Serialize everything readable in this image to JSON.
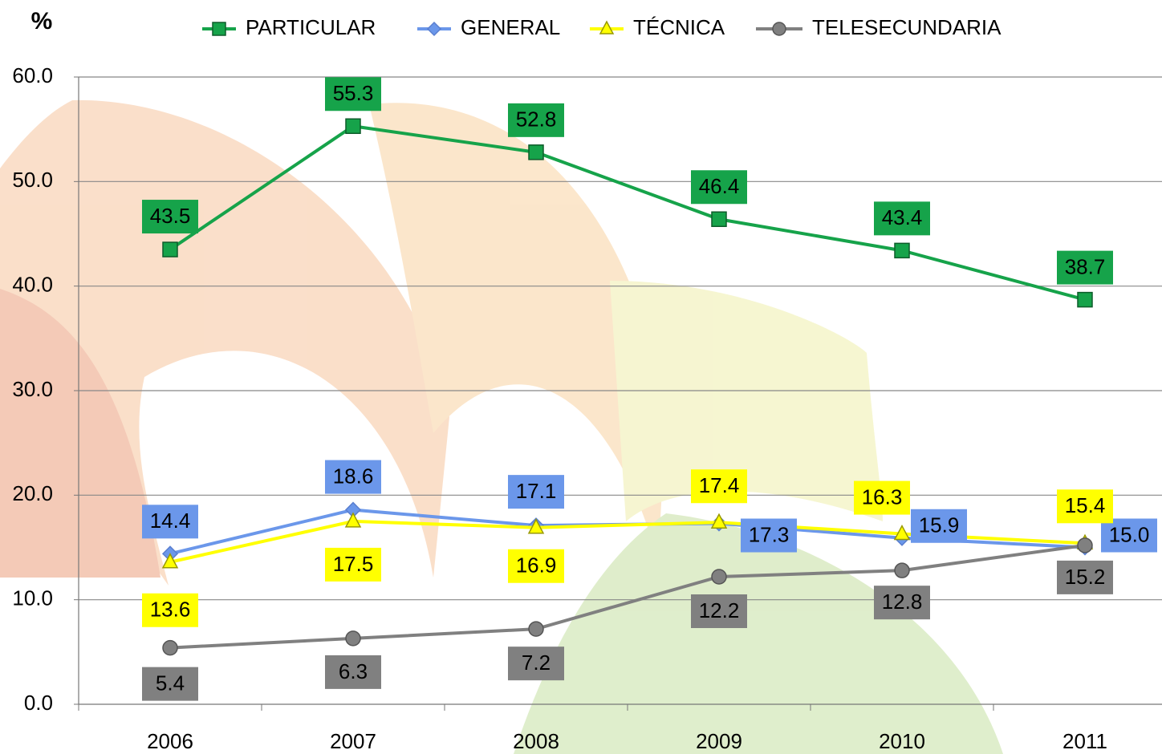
{
  "chart_data": {
    "type": "line",
    "ylabel": "%",
    "categories": [
      "2006",
      "2007",
      "2008",
      "2009",
      "2010",
      "2011"
    ],
    "series": [
      {
        "name": "PARTICULAR",
        "color": "#16a34a",
        "marker": "square",
        "values": [
          43.5,
          55.3,
          52.8,
          46.4,
          43.4,
          38.7
        ],
        "value_labels": [
          "43.5",
          "55.3",
          "52.8",
          "46.4",
          "43.4",
          "38.7"
        ]
      },
      {
        "name": "GENERAL",
        "color": "#6b97ea",
        "marker": "diamond",
        "values": [
          14.4,
          18.6,
          17.1,
          17.3,
          15.9,
          15.0
        ],
        "value_labels": [
          "14.4",
          "18.6",
          "17.1",
          "17.3",
          "15.9",
          "15.0"
        ]
      },
      {
        "name": "TÉCNICA",
        "color": "#ffff00",
        "marker": "triangle",
        "values": [
          13.6,
          17.5,
          16.9,
          17.4,
          16.3,
          15.4
        ],
        "value_labels": [
          "13.6",
          "17.5",
          "16.9",
          "17.4",
          "16.3",
          "15.4"
        ]
      },
      {
        "name": "TELESECUNDARIA",
        "color": "#808080",
        "marker": "circle",
        "values": [
          5.4,
          6.3,
          7.2,
          12.2,
          12.8,
          15.2
        ],
        "value_labels": [
          "5.4",
          "6.3",
          "7.2",
          "12.2",
          "12.8",
          "15.2"
        ]
      }
    ],
    "ylim": [
      0,
      60
    ],
    "yticks": [
      {
        "value": 0,
        "label": "0.0"
      },
      {
        "value": 10,
        "label": "10.0"
      },
      {
        "value": 20,
        "label": "20.0"
      },
      {
        "value": 30,
        "label": "30.0"
      },
      {
        "value": 40,
        "label": "40.0"
      },
      {
        "value": 50,
        "label": "50.0"
      },
      {
        "value": 60,
        "label": "60.0"
      }
    ],
    "grid": true
  }
}
